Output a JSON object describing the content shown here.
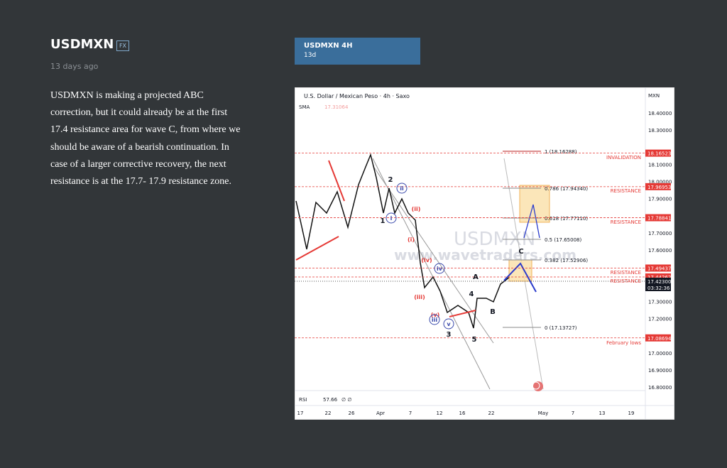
{
  "header": {
    "title": "USDMXN",
    "badge": "FX",
    "time": "13 days ago"
  },
  "description": [
    "USDMXN is making a projected ABC",
    "correction, but it could already be at the first",
    "17.4 resistance area for wave C, from where we",
    "should be aware of a bearish continuation. In",
    "case of a larger corrective recovery, the next",
    "resistance is at the 17.7- 17.9 resistance zone."
  ],
  "card": {
    "title": "USDMXN 4H",
    "subtitle": "13d"
  },
  "chart": {
    "symbol": "U.S. Dollar / Mexican Peso · 4h · Saxo",
    "indicator": "SMA",
    "indicator_value": "17.31064",
    "currency": "MXN",
    "watermark": "USDMXN",
    "website": "www.wavetraders.com",
    "rsi": "RSI",
    "rsi_value": "57.66",
    "rsi_extra": "∅ ∅",
    "price_axis": [
      "18.40000",
      "18.30000",
      "18.10000",
      "18.00000",
      "17.90000",
      "17.70000",
      "17.60000",
      "17.30000",
      "17.20000",
      "17.00000",
      "16.90000",
      "16.80000"
    ],
    "date_axis": [
      "17",
      "22",
      "26",
      "Apr",
      "7",
      "12",
      "16",
      "22",
      "May",
      "7",
      "13",
      "19"
    ],
    "fib_levels": [
      "1 (18.16288)",
      "0.786 (17.94340)",
      "0.618 (17.77110)",
      "0.5 (17.65008)",
      "0.382 (17.52906)",
      "0 (17.13727)"
    ],
    "price_tags": [
      "18.16523",
      "17.96953",
      "17.78841",
      "17.49437",
      "17.44262",
      "17.08694"
    ],
    "current_price": "17.42300",
    "countdown": "03:32:36",
    "zone_labels": [
      "INVALIDATION",
      "RESISTANCE",
      "RESISTANCE",
      "RESISTANCE",
      "RESISTANCE",
      "February lows"
    ],
    "wave_labels": [
      "2",
      "1",
      "3",
      "5",
      "A",
      "B",
      "C",
      "4",
      "(i)",
      "(ii)",
      "(iii)",
      "(iv)",
      "(v)",
      "i",
      "ii",
      "iii",
      "iv",
      "v"
    ]
  }
}
